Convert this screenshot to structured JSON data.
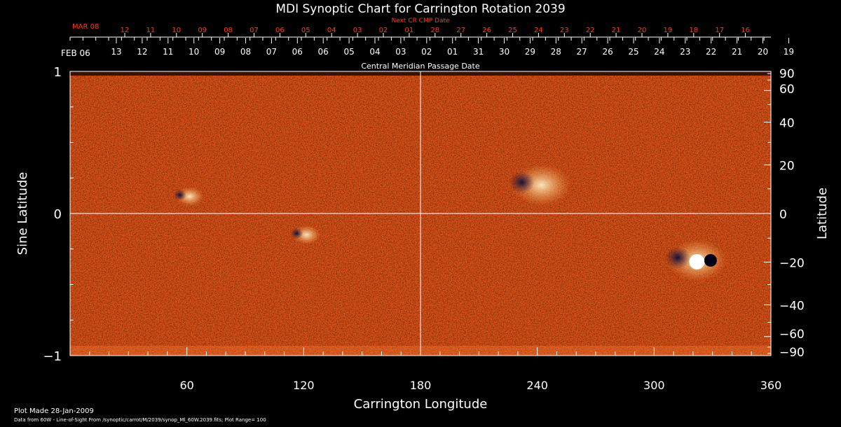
{
  "chart_data": {
    "type": "heatmap",
    "title": "MDI Synoptic Chart for Carrington Rotation 2039",
    "next_cr_label": "Next CR CMP Date",
    "cmp_label": "Central Meridian Passage Date",
    "xlabel": "Carrington Longitude",
    "ylabel_left": "Sine Latitude",
    "ylabel_right": "Latitude",
    "xlim": [
      0,
      360
    ],
    "ylim": [
      -1,
      1
    ],
    "x_ticks": [
      {
        "v": 60,
        "label": "60"
      },
      {
        "v": 120,
        "label": "120"
      },
      {
        "v": 180,
        "label": "180"
      },
      {
        "v": 240,
        "label": "240"
      },
      {
        "v": 300,
        "label": "300"
      },
      {
        "v": 360,
        "label": "360"
      }
    ],
    "y_ticks_left": [
      {
        "v": 1,
        "label": "1"
      },
      {
        "v": 0,
        "label": "0"
      },
      {
        "v": -1,
        "label": "−1"
      }
    ],
    "y_ticks_right": [
      {
        "deg": 90,
        "label": "90"
      },
      {
        "deg": 60,
        "label": "60"
      },
      {
        "deg": 40,
        "label": "40"
      },
      {
        "deg": 20,
        "label": "20"
      },
      {
        "deg": 0,
        "label": "0"
      },
      {
        "deg": -20,
        "label": "−20"
      },
      {
        "deg": -40,
        "label": "−40"
      },
      {
        "deg": -60,
        "label": "−60"
      },
      {
        "deg": -90,
        "label": "−90"
      }
    ],
    "top_dates_current": {
      "start_label": "FEB 06",
      "labels": [
        "13",
        "12",
        "11",
        "10",
        "09",
        "08",
        "07",
        "06",
        "06",
        "05",
        "04",
        "03",
        "02",
        "01",
        "31",
        "30",
        "29",
        "28",
        "27",
        "26",
        "25",
        "24",
        "23",
        "22",
        "21",
        "20",
        "19"
      ]
    },
    "top_dates_next": {
      "start_label": "MAR 08",
      "labels": [
        "12",
        "11",
        "10",
        "09",
        "08",
        "07",
        "06",
        "05",
        "04",
        "03",
        "02",
        "01",
        "28",
        "27",
        "26",
        "25",
        "24",
        "23",
        "22",
        "21",
        "20",
        "19",
        "18",
        "17",
        "16"
      ]
    },
    "plot_range": 100,
    "active_regions": [
      {
        "lon": 240,
        "lat_sine": 0.2,
        "polarity": "mixed"
      },
      {
        "lon": 320,
        "lat_sine": -0.33,
        "polarity": "mixed"
      },
      {
        "lon": 120,
        "lat_sine": -0.15,
        "polarity": "mixed"
      },
      {
        "lon": 60,
        "lat_sine": 0.12,
        "polarity": "mixed"
      }
    ],
    "colors": {
      "background": "#000000",
      "map_base": "#d8400c",
      "positive": "#ffffff",
      "negative": "#10144a",
      "axes": "#ffffff",
      "next_dates": "#ff3b1b"
    }
  },
  "footer": {
    "plot_made": "Plot Made 28-Jan-2009",
    "data_line": "Data from 60W - Line-of-Sight From /synoptic/carrot/M/2039/synop_Ml_60W.2039.fits; Plot Range=  100"
  }
}
